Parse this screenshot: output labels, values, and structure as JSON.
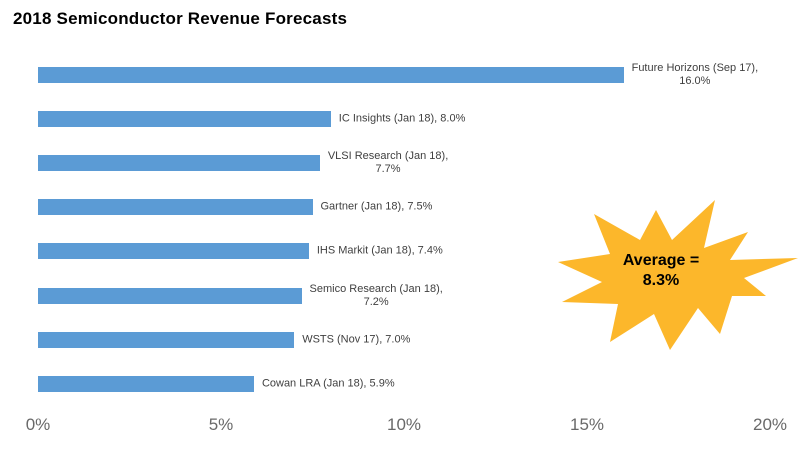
{
  "title": "2018 Semiconductor Revenue Forecasts",
  "chart_data": {
    "type": "bar",
    "orientation": "horizontal",
    "title": "2018 Semiconductor Revenue Forecasts",
    "categories": [
      "Future Horizons (Sep 17)",
      "IC Insights (Jan 18)",
      "VLSI Research (Jan 18)",
      "Gartner (Jan 18)",
      "IHS Markit (Jan 18)",
      "Semico Research (Jan 18)",
      "WSTS (Nov 17)",
      "Cowan LRA (Jan 18)"
    ],
    "values": [
      16.0,
      8.0,
      7.7,
      7.5,
      7.4,
      7.2,
      7.0,
      5.9
    ],
    "data_labels": [
      "Future Horizons (Sep 17),\n16.0%",
      "IC Insights (Jan 18), 8.0%",
      "VLSI Research (Jan 18),\n7.7%",
      "Gartner (Jan 18), 7.5%",
      "IHS Markit (Jan 18), 7.4%",
      "Semico Research (Jan 18),\n7.2%",
      "WSTS (Nov 17), 7.0%",
      "Cowan LRA (Jan 18), 5.9%"
    ],
    "xlabel": "",
    "ylabel": "",
    "xlim": [
      0,
      20
    ],
    "x_tick_values": [
      0,
      5,
      10,
      15,
      20
    ],
    "x_tick_labels": [
      "0%",
      "5%",
      "10%",
      "15%",
      "20%"
    ],
    "grid": false,
    "legend": false,
    "bar_color": "#5B9BD5",
    "annotation": {
      "shape": "starburst",
      "text": "Average =\n8.3%",
      "fill_color": "#FCB72B",
      "text_color": "#000000"
    }
  }
}
